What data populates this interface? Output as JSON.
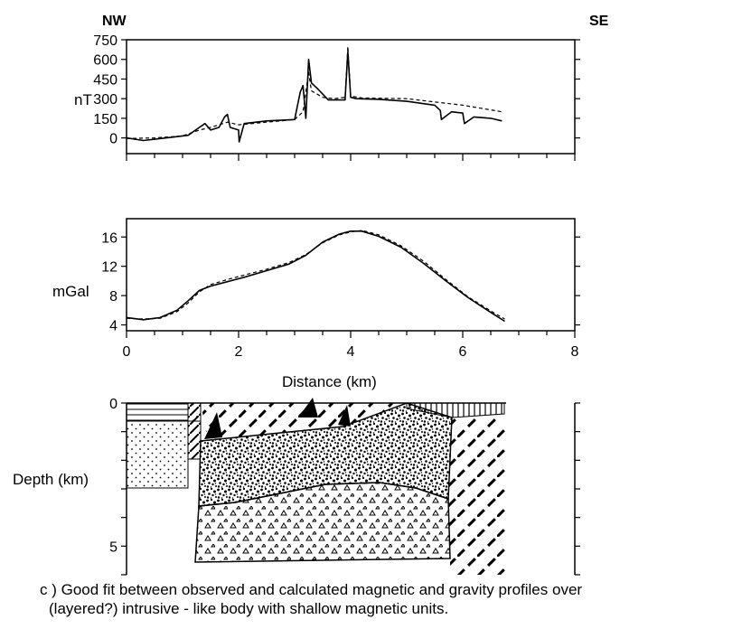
{
  "directions": {
    "left": "NW",
    "right": "SE"
  },
  "chart_data": [
    {
      "id": "magnetic",
      "type": "line",
      "ylabel": "nT",
      "xlim": [
        0,
        8
      ],
      "ylim": [
        -120,
        750
      ],
      "yticks": [
        0,
        150,
        300,
        450,
        600,
        750
      ],
      "series": [
        {
          "style": "solid",
          "x": [
            0,
            0.3,
            0.5,
            0.8,
            1.1,
            1.3,
            1.4,
            1.5,
            1.65,
            1.75,
            1.8,
            1.85,
            2.0,
            2.01,
            2.1,
            2.5,
            3.0,
            3.1,
            3.15,
            3.2,
            3.25,
            3.3,
            3.4,
            3.6,
            3.9,
            3.95,
            4.0,
            4.1,
            4.5,
            5.0,
            5.5,
            5.6,
            5.62,
            5.8,
            6.0,
            6.03,
            6.2,
            6.5,
            6.7
          ],
          "y": [
            0,
            -20,
            -10,
            5,
            20,
            80,
            110,
            60,
            80,
            160,
            180,
            80,
            60,
            -30,
            110,
            130,
            140,
            350,
            400,
            150,
            600,
            420,
            380,
            290,
            290,
            660,
            310,
            300,
            295,
            280,
            250,
            210,
            140,
            200,
            190,
            110,
            160,
            150,
            130
          ]
        },
        {
          "style": "dashed",
          "x": [
            0,
            0.5,
            1.0,
            1.3,
            1.5,
            1.8,
            2.0,
            2.5,
            3.0,
            3.15,
            3.25,
            3.3,
            3.5,
            3.7,
            3.9,
            3.95,
            4.0,
            4.2,
            5.0,
            6.0,
            6.7
          ],
          "y": [
            -5,
            0,
            15,
            60,
            80,
            120,
            100,
            120,
            140,
            200,
            500,
            360,
            310,
            300,
            310,
            700,
            320,
            305,
            300,
            250,
            200
          ]
        }
      ]
    },
    {
      "id": "gravity",
      "type": "line",
      "ylabel": "mGal",
      "xlabel": "Distance (km)",
      "xlim": [
        0,
        8
      ],
      "ylim": [
        3.2,
        18.5
      ],
      "yticks": [
        4,
        8,
        12,
        16
      ],
      "xticks": [
        0,
        2,
        4,
        6,
        8
      ],
      "series": [
        {
          "style": "solid",
          "x": [
            0,
            0.3,
            0.6,
            0.9,
            1.1,
            1.3,
            1.5,
            1.8,
            2.1,
            2.5,
            2.9,
            3.2,
            3.5,
            3.8,
            4.0,
            4.2,
            4.5,
            4.9,
            5.3,
            5.7,
            6.1,
            6.5,
            6.75
          ],
          "y": [
            5.0,
            4.7,
            5.0,
            6.0,
            7.3,
            8.7,
            9.3,
            9.9,
            10.5,
            11.4,
            12.3,
            13.5,
            15.3,
            16.4,
            16.8,
            16.8,
            16.1,
            14.6,
            12.4,
            10.0,
            7.7,
            5.7,
            4.5
          ]
        },
        {
          "style": "dashed",
          "x": [
            0,
            0.3,
            0.6,
            0.9,
            1.1,
            1.3,
            1.5,
            1.8,
            2.1,
            2.5,
            2.9,
            3.2,
            3.5,
            3.8,
            4.0,
            4.2,
            4.5,
            4.9,
            5.3,
            5.7,
            6.1,
            6.5,
            6.75
          ],
          "y": [
            4.9,
            4.8,
            4.9,
            5.8,
            7.0,
            8.5,
            9.5,
            10.2,
            10.8,
            11.6,
            12.5,
            13.6,
            15.2,
            16.3,
            16.7,
            16.9,
            16.3,
            14.8,
            12.7,
            10.2,
            7.8,
            5.9,
            4.8
          ]
        }
      ]
    },
    {
      "id": "depth-model",
      "type": "diagram",
      "ylabel": "Depth (km)",
      "xlim": [
        0,
        8
      ],
      "ylim": [
        6,
        0
      ],
      "yticks": [
        0,
        5
      ]
    }
  ],
  "caption": {
    "line1": "c ) Good fit between observed and calculated magnetic and gravity profiles over",
    "line2": "(layered?) intrusive - like body with shallow magnetic units."
  }
}
